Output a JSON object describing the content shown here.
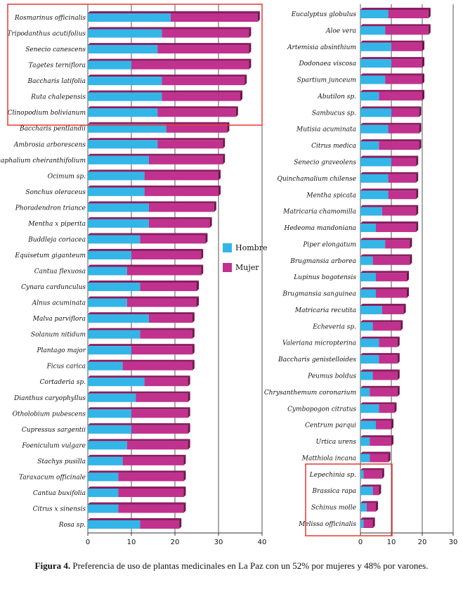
{
  "chart_data": [
    {
      "type": "bar",
      "stacked": true,
      "orientation": "horizontal",
      "categories": [
        "Rosmarinus officinalis",
        "Tripodanthus acutifolius",
        "Senecio canescens",
        "Tagetes terniflora",
        "Baccharis latifolia",
        "Ruta chalepensis",
        "Clinopodium bolivianum",
        "Baccharis pentlandii",
        "Ambrosia arborescens",
        "Gnaphalium cheiranthifolium",
        "Ocimum sp.",
        "Sonchus oleraceus",
        "Phoradendron triance",
        "Mentha x piperita",
        "Buddleja coriacea",
        "Equisetum giganteum",
        "Cantua flexuosa",
        "Cynara cardunculus",
        "Alnus acuminata",
        "Malva parviflora",
        "Solanum nitidum",
        "Plantago major",
        "Ficus carica",
        "Cortaderia sp.",
        "Dianthus caryophyllus",
        "Otholobium pubescens",
        "Cupressus sargentii",
        "Foeniculum vulgare",
        "Stachys pusilla",
        "Taraxacum officinale",
        "Cantua buxifolia",
        "Citrus x sinensis",
        "Rosa sp."
      ],
      "series": [
        {
          "name": "Hombre",
          "values": [
            19,
            17,
            16,
            10,
            17,
            17,
            16,
            18,
            16,
            14,
            13,
            13,
            14,
            14,
            12,
            10,
            9,
            12,
            9,
            14,
            12,
            10,
            8,
            13,
            11,
            10,
            10,
            9,
            8,
            7,
            7,
            7,
            12
          ]
        },
        {
          "name": "Mujer",
          "values": [
            20,
            20,
            21,
            27,
            19,
            18,
            18,
            14,
            15,
            17,
            17,
            17,
            15,
            14,
            15,
            16,
            17,
            13,
            16,
            10,
            12,
            14,
            16,
            10,
            12,
            13,
            13,
            14,
            14,
            15,
            15,
            15,
            9
          ]
        }
      ],
      "xlim": [
        0,
        40
      ],
      "xticks": [
        "0",
        "10",
        "20",
        "30",
        "40"
      ]
    },
    {
      "type": "bar",
      "stacked": true,
      "orientation": "horizontal",
      "categories": [
        "Eucalyptus globulus",
        "Aloe vera",
        "Artemisia absinthium",
        "Dodonaea viscosa",
        "Spartium junceum",
        "Abutilon sp.",
        "Sambucus sp.",
        "Mutisia acuminata",
        "Citrus medica",
        "Senecio graveolens",
        "Quinchamalium chilense",
        "Mentha spicata",
        "Matricaria chamomilla",
        "Hedeoma mandoniana",
        "Piper elongatum",
        "Brugmansia arborea",
        "Lupinus bogotensis",
        "Brugmansia sanguinea",
        "Matricaria recutita",
        "Echeveria sp.",
        "Valeriana micropterina",
        "Baccharis genistelloides",
        "Peumus boldus",
        "Chrysanthemum coronarium",
        "Cymbopogon citratus",
        "Centrum parqui",
        "Urtica urens",
        "Matthiola incana",
        "Lepechinia sp.",
        "Brassica rapa",
        "Schinus molle",
        "Melissa officinalis"
      ],
      "series": [
        {
          "name": "Hombre",
          "values": [
            9,
            8,
            10,
            10,
            8,
            6,
            10,
            9,
            6,
            10,
            9,
            9,
            7,
            5,
            8,
            4,
            5,
            5,
            7,
            4,
            6,
            6,
            4,
            3,
            6,
            5,
            3,
            3,
            1,
            4,
            2,
            1
          ]
        },
        {
          "name": "Mujer",
          "values": [
            13,
            14,
            10,
            10,
            12,
            14,
            9,
            10,
            13,
            8,
            9,
            9,
            11,
            13,
            8,
            12,
            10,
            10,
            7,
            9,
            6,
            6,
            8,
            9,
            5,
            5,
            7,
            6,
            6,
            2,
            3,
            3
          ]
        }
      ],
      "xlim": [
        0,
        30
      ],
      "xticks": [
        "0",
        "10",
        "20",
        "30"
      ]
    }
  ],
  "legend": {
    "hombre": "Hombre",
    "mujer": "Mujer"
  },
  "colors": {
    "hombre": "#33b5e8",
    "mujer": "#c0328e",
    "highlight": "#e53935"
  },
  "caption": {
    "label": "Figura 4.",
    "text": " Preferencia de uso de plantas medicinales en La Paz con un 52% por mujeres y 48% por varones."
  }
}
